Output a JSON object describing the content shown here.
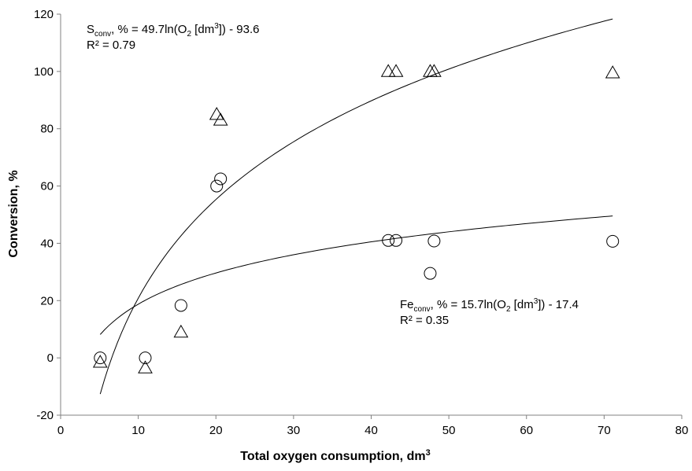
{
  "chart_data": {
    "type": "scatter",
    "xlabel": "Total oxygen consumption, dm",
    "xlabel_sup": "3",
    "ylabel": "Conversion, %",
    "xlim": [
      0,
      80
    ],
    "ylim": [
      -20,
      120
    ],
    "x_ticks": [
      0,
      10,
      20,
      30,
      40,
      50,
      60,
      70,
      80
    ],
    "y_ticks": [
      -20,
      0,
      20,
      40,
      60,
      80,
      100,
      120
    ],
    "grid": false,
    "legend": "none",
    "series": [
      {
        "marker": "triangle",
        "x": [
          5.1,
          10.9,
          15.5,
          20.1,
          20.6,
          42.2,
          43.2,
          47.6,
          48.1,
          71.1
        ],
        "y": [
          -1.5,
          -3.5,
          9,
          85,
          83,
          100,
          100,
          100,
          100,
          99.5
        ]
      },
      {
        "marker": "circle",
        "x": [
          5.1,
          10.9,
          15.5,
          20.1,
          20.6,
          42.2,
          43.2,
          47.6,
          48.1,
          71.1
        ],
        "y": [
          0,
          0,
          18.3,
          60,
          62.5,
          41,
          41,
          29.5,
          40.8,
          40.7
        ]
      }
    ],
    "trendlines": [
      {
        "type": "log",
        "a": 49.7,
        "b": -93.6,
        "x_range": [
          5.1,
          71.1
        ],
        "eq_main": "S",
        "eq_sub": "conv",
        "eq_mid": ", % = 49.7ln(O",
        "eq_sub2": "2",
        "eq_mid2": " [dm",
        "eq_sup": "3",
        "eq_end": "]) - 93.6",
        "r2": "R² = 0.79"
      },
      {
        "type": "log",
        "a": 15.7,
        "b": -17.4,
        "x_range": [
          5.1,
          71.1
        ],
        "eq_main": "Fe",
        "eq_sub": "conv",
        "eq_mid": ", % = 15.7ln(O",
        "eq_sub2": "2",
        "eq_mid2": " [dm",
        "eq_sup": "3",
        "eq_end": "]) - 17.4",
        "r2": "R² = 0.35"
      }
    ],
    "colors": {
      "axis": "#808080",
      "marker_stroke": "#000000",
      "trend": "#000000",
      "text": "#000000"
    }
  }
}
